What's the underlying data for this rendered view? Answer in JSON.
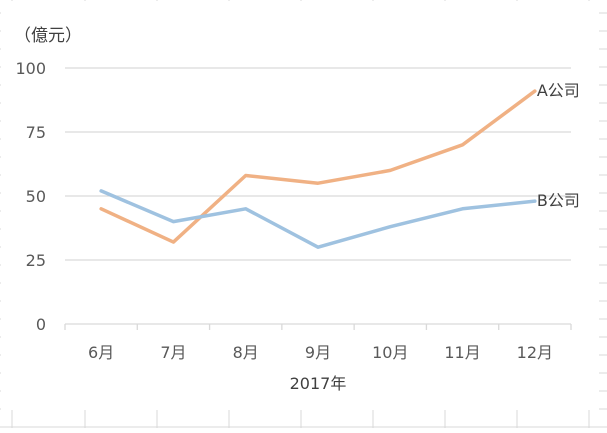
{
  "chart_data": {
    "type": "line",
    "title": "",
    "unit_label": "（億元）",
    "xlabel": "2017年",
    "ylabel": "",
    "categories": [
      "6月",
      "7月",
      "8月",
      "9月",
      "10月",
      "11月",
      "12月"
    ],
    "ylim": [
      0,
      100
    ],
    "yticks": [
      0,
      25,
      50,
      75,
      100
    ],
    "grid": "horizontal",
    "legend": "inline-end-labels",
    "series": [
      {
        "name": "A公司",
        "color": "#f0b184",
        "values": [
          45,
          32,
          58,
          55,
          60,
          70,
          91
        ]
      },
      {
        "name": "B公司",
        "color": "#9fc2e0",
        "values": [
          52,
          40,
          45,
          30,
          38,
          45,
          48
        ]
      }
    ]
  },
  "colors": {
    "background_grid": "#d9d9d9",
    "chart_grid": "#d9d9d9",
    "axis_text": "#595959"
  }
}
